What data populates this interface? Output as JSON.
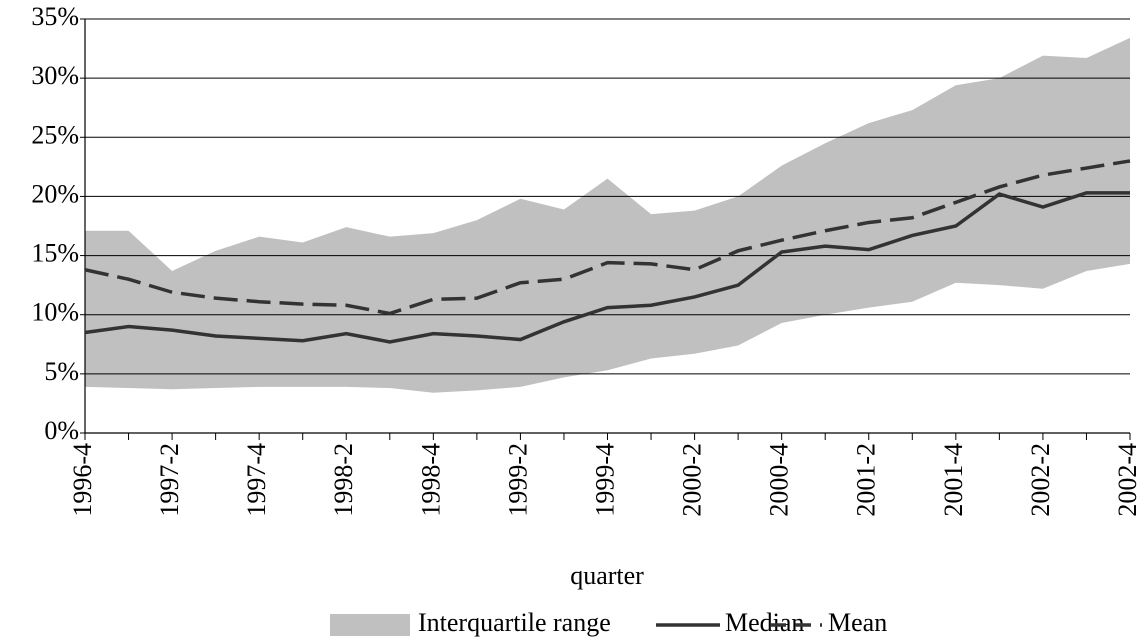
{
  "chart_data": {
    "type": "band-line",
    "x_label": "quarter",
    "categories": [
      "1996-4",
      null,
      "1997-2",
      null,
      "1997-4",
      null,
      "1998-2",
      null,
      "1998-4",
      null,
      "1999-2",
      null,
      "1999-4",
      null,
      "2000-2",
      null,
      "2000-4",
      null,
      "2001-2",
      null,
      "2001-4",
      null,
      "2002-2",
      null,
      "2002-4"
    ],
    "series": [
      {
        "name": "Interquartile range",
        "color": "#c0c0c0",
        "upper": [
          17.1,
          17.1,
          13.7,
          15.4,
          16.6,
          16.1,
          17.4,
          16.6,
          16.9,
          18.0,
          19.8,
          18.9,
          21.5,
          18.5,
          18.8,
          20.0,
          22.6,
          24.5,
          26.2,
          27.3,
          29.4,
          30.0,
          31.9,
          31.7,
          33.4
        ],
        "lower": [
          3.9,
          3.8,
          3.7,
          3.8,
          3.9,
          3.9,
          3.9,
          3.8,
          3.4,
          3.6,
          3.9,
          4.7,
          5.3,
          6.3,
          6.7,
          7.4,
          9.3,
          10.0,
          10.6,
          11.1,
          12.7,
          12.5,
          12.2,
          13.7,
          14.3
        ]
      },
      {
        "name": "Median",
        "color": "#333333",
        "dash": false,
        "values": [
          8.5,
          9.0,
          8.7,
          8.2,
          8.0,
          7.8,
          8.4,
          7.7,
          8.4,
          8.2,
          7.9,
          9.4,
          10.6,
          10.8,
          11.5,
          12.5,
          15.3,
          15.8,
          15.5,
          16.7,
          17.5,
          20.2,
          19.1,
          20.3,
          20.3
        ]
      },
      {
        "name": "Mean",
        "color": "#333333",
        "dash": true,
        "values": [
          13.8,
          13.0,
          11.9,
          11.4,
          11.1,
          10.9,
          10.8,
          10.1,
          11.3,
          11.4,
          12.7,
          13.0,
          14.4,
          14.3,
          13.8,
          15.4,
          16.3,
          17.1,
          17.8,
          18.2,
          19.5,
          20.8,
          21.8,
          22.4,
          23.0
        ]
      }
    ],
    "ylim": [
      0,
      35
    ],
    "yticks": [
      {
        "value": 0,
        "label": "0%"
      },
      {
        "value": 5,
        "label": "5%"
      },
      {
        "value": 10,
        "label": "10%"
      },
      {
        "value": 15,
        "label": "15%"
      },
      {
        "value": 20,
        "label": "20%"
      },
      {
        "value": 25,
        "label": "25%"
      },
      {
        "value": 30,
        "label": "30%"
      },
      {
        "value": 35,
        "label": "35%"
      }
    ],
    "grid": true,
    "legend": "bottom"
  }
}
